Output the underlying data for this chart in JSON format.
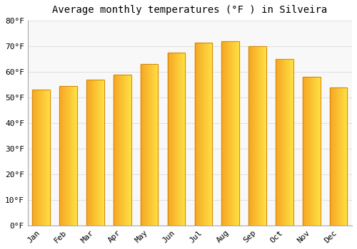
{
  "title": "Average monthly temperatures (°F ) in Silveira",
  "months": [
    "Jan",
    "Feb",
    "Mar",
    "Apr",
    "May",
    "Jun",
    "Jul",
    "Aug",
    "Sep",
    "Oct",
    "Nov",
    "Dec"
  ],
  "values": [
    53,
    54.5,
    57,
    59,
    63,
    67.5,
    71.5,
    72,
    70,
    65,
    58,
    54
  ],
  "bar_color_dark": "#F5A623",
  "bar_color_light": "#FFD966",
  "bar_edge_color": "#D4860A",
  "background_color": "#FFFFFF",
  "plot_bg_color": "#F8F8F8",
  "ylim": [
    0,
    80
  ],
  "yticks": [
    0,
    10,
    20,
    30,
    40,
    50,
    60,
    70,
    80
  ],
  "ytick_labels": [
    "0°F",
    "10°F",
    "20°F",
    "30°F",
    "40°F",
    "50°F",
    "60°F",
    "70°F",
    "80°F"
  ],
  "grid_color": "#E0E0E0",
  "title_fontsize": 10,
  "tick_fontsize": 8,
  "font_family": "monospace"
}
